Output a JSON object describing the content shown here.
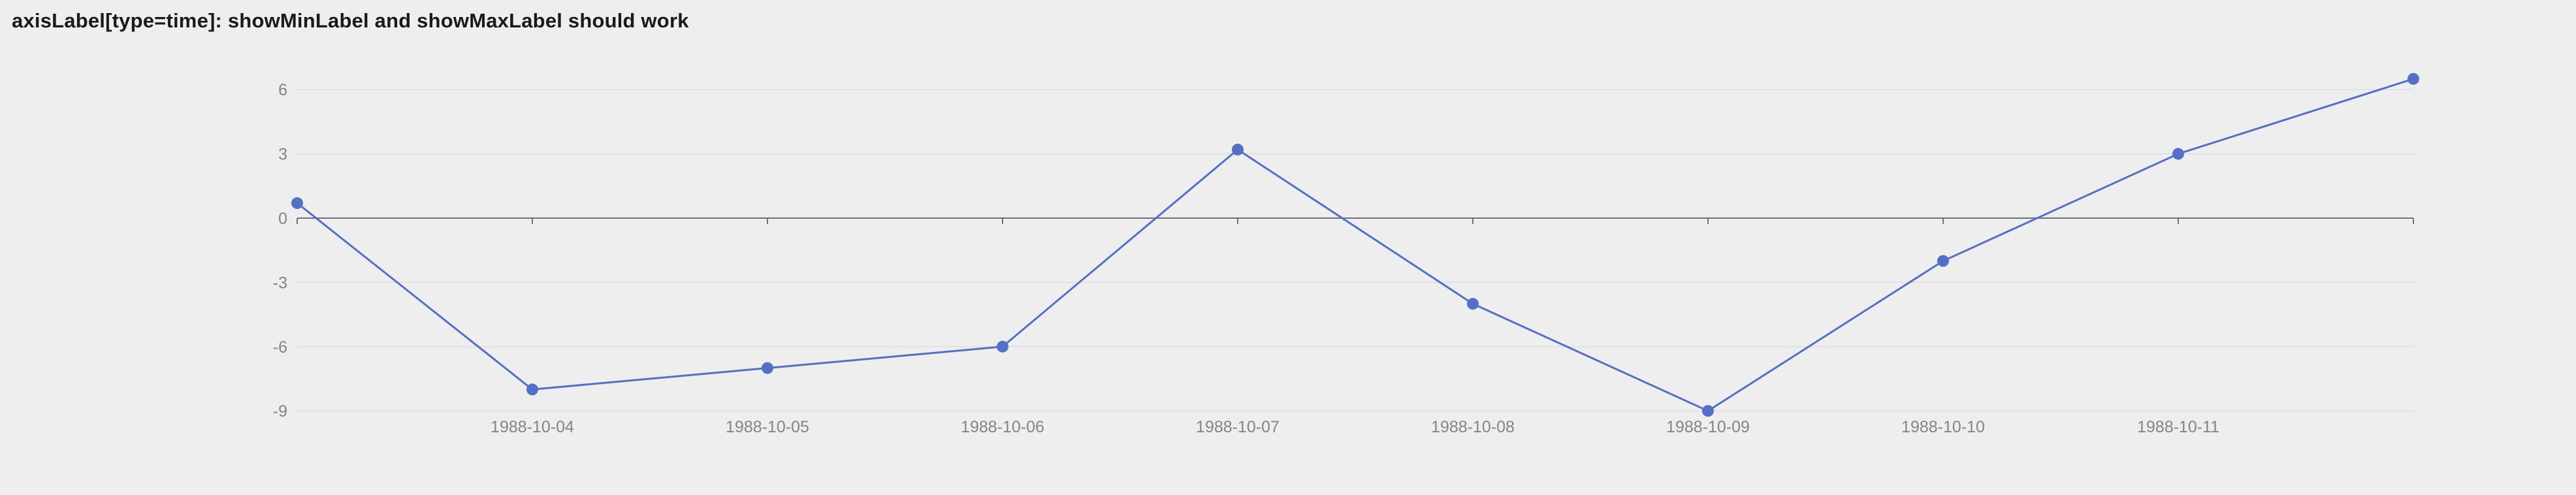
{
  "title": "axisLabel[type=time]: showMinLabel and showMaxLabel should work",
  "chart_data": {
    "type": "line",
    "title": "axisLabel[type=time]: showMinLabel and showMaxLabel should work",
    "x": [
      "1988-10-03",
      "1988-10-04",
      "1988-10-05",
      "1988-10-06",
      "1988-10-07",
      "1988-10-08",
      "1988-10-09",
      "1988-10-10",
      "1988-10-11",
      "1988-10-12"
    ],
    "values": [
      0.7,
      -8,
      -7,
      -6,
      3.2,
      -4,
      -9,
      -2,
      3,
      6.5
    ],
    "x_tick_labels": [
      "1988-10-04",
      "1988-10-05",
      "1988-10-06",
      "1988-10-07",
      "1988-10-08",
      "1988-10-09",
      "1988-10-10",
      "1988-10-11"
    ],
    "min_label_visible": false,
    "max_label_visible": false,
    "y_ticks": [
      6,
      3,
      0,
      -3,
      -6,
      -9
    ],
    "ylim": [
      -9.9,
      7.2
    ],
    "xlabel": "",
    "ylabel": "",
    "grid": true,
    "legend": false,
    "colors": {
      "background": "#eeeeee",
      "line": "#5470c6",
      "point": "#5470c6",
      "axis_line": "#6e7079",
      "tick_label": "#848484",
      "grid_line": "#dedede",
      "title": "#1a1a1a"
    }
  }
}
